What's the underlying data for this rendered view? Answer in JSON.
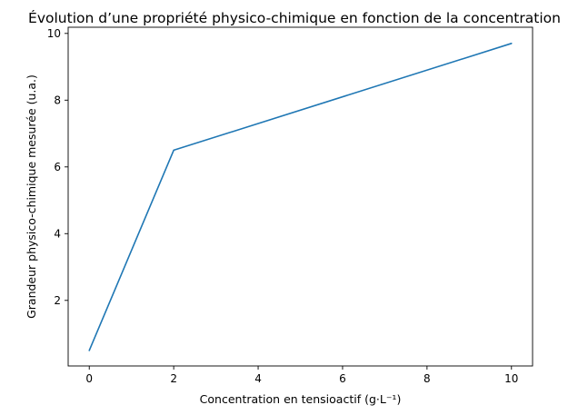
{
  "chart_data": {
    "type": "line",
    "title": "Évolution d’une propriété physico-chimique en fonction de la concentration",
    "xlabel": "Concentration en tensioactif (g·L⁻¹)",
    "ylabel": "Grandeur physico-chimique mesurée (u.a.)",
    "xlim": [
      -0.5,
      10.5
    ],
    "ylim": [
      0.035,
      10.185
    ],
    "xticks": [
      0,
      2,
      4,
      6,
      8,
      10
    ],
    "yticks": [
      2,
      4,
      6,
      8,
      10
    ],
    "grid": false,
    "legend": "none",
    "series": [
      {
        "color": "#1f77b4",
        "x": [
          0,
          2,
          10
        ],
        "y": [
          0.5,
          6.5,
          9.7
        ]
      }
    ]
  }
}
